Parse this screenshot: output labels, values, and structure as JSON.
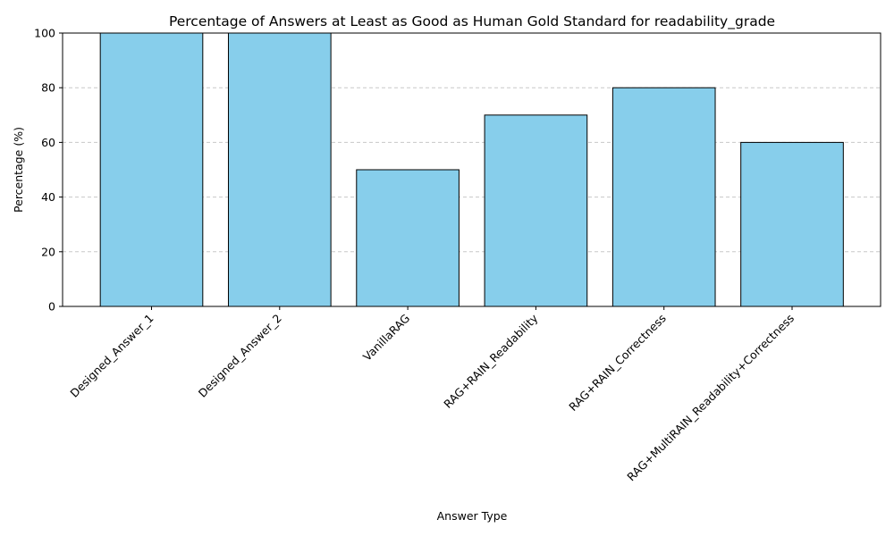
{
  "chart_data": {
    "type": "bar",
    "title": "Percentage of Answers at Least as Good as Human Gold Standard for readability_grade",
    "xlabel": "Answer Type",
    "ylabel": "Percentage (%)",
    "categories": [
      "Designed_Answer_1",
      "Designed_Answer_2",
      "VanillaRAG",
      "RAG+RAIN_Readability",
      "RAG+RAIN_Correctness",
      "RAG+MultiRAIN_Readability+Correctness"
    ],
    "values": [
      100,
      100,
      50,
      70,
      80,
      60
    ],
    "ylim": [
      0,
      100
    ],
    "yticks": [
      0,
      20,
      40,
      60,
      80,
      100
    ],
    "grid": "y-dashed",
    "bar_color": "#87CEEB",
    "edge_color": "#000000",
    "grid_color": "#c8c8c8"
  }
}
